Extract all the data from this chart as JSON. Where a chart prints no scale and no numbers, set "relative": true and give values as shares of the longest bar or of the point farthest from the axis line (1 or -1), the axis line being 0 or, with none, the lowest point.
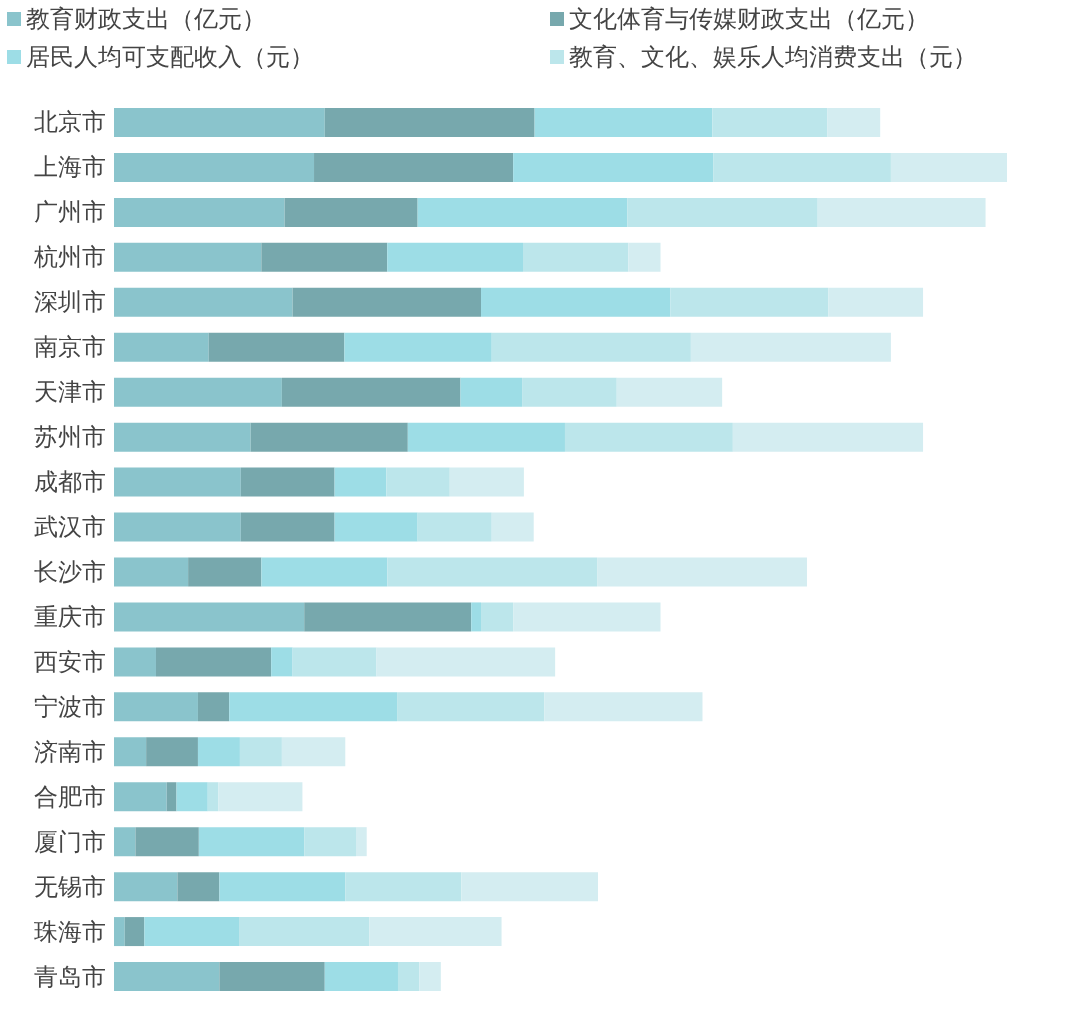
{
  "chart_data": {
    "type": "bar",
    "orientation": "horizontal",
    "stacked": true,
    "relative": true,
    "legend": "top",
    "categories": [
      "北京市",
      "上海市",
      "广州市",
      "杭州市",
      "深圳市",
      "南京市",
      "天津市",
      "苏州市",
      "成都市",
      "武汉市",
      "长沙市",
      "重庆市",
      "西安市",
      "宁波市",
      "济南市",
      "合肥市",
      "厦门市",
      "无锡市",
      "珠海市",
      "青岛市"
    ],
    "series": [
      {
        "name": "教育财政支出（亿元）",
        "color": "#8ac4cc",
        "values": [
          0.236,
          0.224,
          0.191,
          0.165,
          0.2,
          0.106,
          0.188,
          0.153,
          0.142,
          0.142,
          0.083,
          0.213,
          0.047,
          0.094,
          0.036,
          0.059,
          0.024,
          0.071,
          0.012,
          0.118
        ]
      },
      {
        "name": "文化体育与传媒财政支出（亿元）",
        "color": "#77a8ad",
        "values": [
          0.235,
          0.223,
          0.149,
          0.141,
          0.211,
          0.152,
          0.2,
          0.176,
          0.105,
          0.105,
          0.082,
          0.187,
          0.129,
          0.035,
          0.058,
          0.011,
          0.071,
          0.047,
          0.022,
          0.118
        ]
      },
      {
        "name": "居民人均可支配收入（元）",
        "color": "#9ddde6",
        "values": [
          0.199,
          0.224,
          0.235,
          0.152,
          0.212,
          0.165,
          0.069,
          0.176,
          0.058,
          0.093,
          0.141,
          0.011,
          0.024,
          0.188,
          0.047,
          0.035,
          0.118,
          0.141,
          0.106,
          0.082
        ]
      },
      {
        "name": "教育、文化、娱乐人均消费支出（元）",
        "color": "#bce6eb",
        "values": [
          0.129,
          0.199,
          0.213,
          0.118,
          0.177,
          0.223,
          0.106,
          0.188,
          0.071,
          0.083,
          0.235,
          0.036,
          0.094,
          0.165,
          0.047,
          0.012,
          0.058,
          0.13,
          0.146,
          0.024
        ]
      },
      {
        "color": "#d4edf1",
        "values": [
          0.059,
          0.13,
          0.188,
          0.036,
          0.106,
          0.224,
          0.118,
          0.213,
          0.083,
          0.047,
          0.235,
          0.165,
          0.2,
          0.177,
          0.071,
          0.094,
          0.012,
          0.153,
          0.148,
          0.024
        ]
      }
    ]
  }
}
